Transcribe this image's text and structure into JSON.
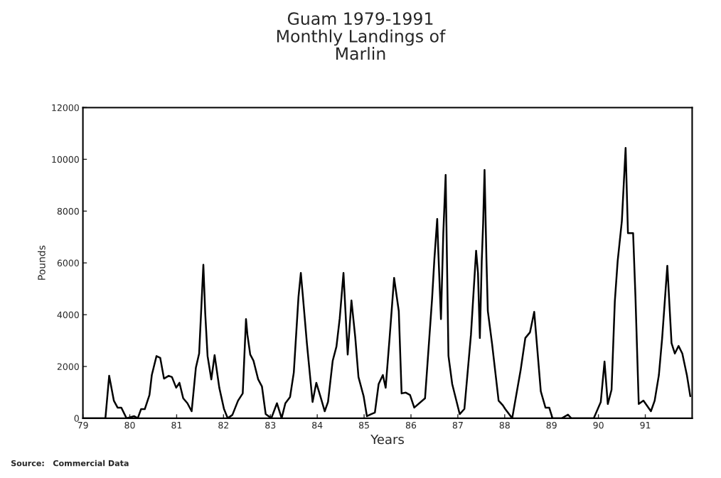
{
  "chart_data": {
    "type": "line",
    "title": "Guam 1979-1991\nMonthly Landings of\nMarlin",
    "xlabel": "Years",
    "ylabel": "Pounds",
    "x": [
      79.0,
      79.48,
      79.56,
      79.66,
      79.74,
      79.82,
      79.93,
      80.09,
      80.17,
      80.24,
      80.32,
      80.42,
      80.47,
      80.57,
      80.65,
      80.73,
      80.83,
      80.9,
      80.99,
      81.06,
      81.14,
      81.23,
      81.32,
      81.41,
      81.48,
      81.57,
      81.61,
      81.66,
      81.74,
      81.81,
      81.91,
      82.01,
      82.09,
      82.19,
      82.31,
      82.41,
      82.48,
      82.51,
      82.57,
      82.64,
      82.74,
      82.82,
      82.9,
      83.02,
      83.14,
      83.24,
      83.32,
      83.42,
      83.5,
      83.6,
      83.65,
      83.69,
      83.78,
      83.9,
      83.98,
      84.08,
      84.16,
      84.23,
      84.33,
      84.41,
      84.48,
      84.56,
      84.65,
      84.73,
      84.81,
      84.88,
      84.99,
      85.06,
      85.15,
      85.23,
      85.31,
      85.4,
      85.46,
      85.54,
      85.64,
      85.74,
      85.8,
      85.89,
      85.98,
      86.07,
      86.3,
      86.45,
      86.5,
      86.56,
      86.58,
      86.64,
      86.69,
      86.74,
      86.8,
      86.88,
      87.04,
      87.14,
      87.28,
      87.39,
      87.43,
      87.47,
      87.51,
      87.54,
      87.57,
      87.61,
      87.64,
      87.73,
      87.87,
      87.96,
      88.01,
      88.16,
      88.34,
      88.44,
      88.54,
      88.63,
      88.77,
      88.87,
      88.95,
      89.02,
      89.22,
      89.35,
      89.42,
      89.9,
      90.05,
      90.13,
      90.2,
      90.28,
      90.35,
      90.41,
      90.5,
      90.58,
      90.63,
      90.74,
      90.79,
      90.86,
      90.96,
      91.12,
      91.2,
      91.29,
      91.36,
      91.47,
      91.56,
      91.63,
      91.71,
      91.79,
      91.89,
      91.96
    ],
    "values": [
      0,
      0,
      1640,
      680,
      410,
      410,
      0,
      80,
      0,
      350,
      350,
      900,
      1670,
      2400,
      2330,
      1530,
      1640,
      1590,
      1180,
      1370,
      770,
      580,
      270,
      1950,
      2500,
      5930,
      4050,
      2400,
      1500,
      2440,
      1180,
      360,
      0,
      130,
      680,
      960,
      3830,
      3230,
      2460,
      2220,
      1500,
      1230,
      160,
      0,
      580,
      0,
      580,
      820,
      1770,
      4690,
      5610,
      4790,
      2880,
      630,
      1370,
      770,
      270,
      630,
      2220,
      2770,
      3860,
      5610,
      2460,
      4550,
      3150,
      1590,
      850,
      80,
      160,
      220,
      1320,
      1670,
      1180,
      3010,
      5420,
      4140,
      960,
      990,
      900,
      410,
      770,
      4600,
      6160,
      7700,
      6600,
      3830,
      7150,
      9400,
      2410,
      1320,
      160,
      360,
      3230,
      6470,
      5610,
      3100,
      6060,
      7530,
      9590,
      6160,
      4140,
      2880,
      680,
      500,
      360,
      0,
      1860,
      3100,
      3320,
      4110,
      1040,
      410,
      410,
      0,
      0,
      140,
      0,
      0,
      630,
      2190,
      550,
      1100,
      4520,
      6060,
      7620,
      10440,
      7150,
      7150,
      4690,
      550,
      680,
      270,
      680,
      1670,
      3100,
      5890,
      2900,
      2500,
      2790,
      2500,
      1640,
      850
    ],
    "color": "#000000",
    "xlim": [
      79,
      92
    ],
    "xticks": [
      {
        "value": 79,
        "label": "79"
      },
      {
        "value": 80,
        "label": "80"
      },
      {
        "value": 81,
        "label": "81"
      },
      {
        "value": 82,
        "label": "82"
      },
      {
        "value": 83,
        "label": "83"
      },
      {
        "value": 84,
        "label": "84"
      },
      {
        "value": 85,
        "label": "85"
      },
      {
        "value": 86,
        "label": "86"
      },
      {
        "value": 87,
        "label": "87"
      },
      {
        "value": 88,
        "label": "88"
      },
      {
        "value": 89,
        "label": "89"
      },
      {
        "value": 90,
        "label": "90"
      },
      {
        "value": 91,
        "label": "91"
      }
    ],
    "ylim": [
      0,
      12000
    ],
    "yticks": [
      0,
      2000,
      4000,
      6000,
      8000,
      10000,
      12000
    ],
    "grid": false,
    "annotations": [
      "Source:   Commercial Data"
    ]
  }
}
